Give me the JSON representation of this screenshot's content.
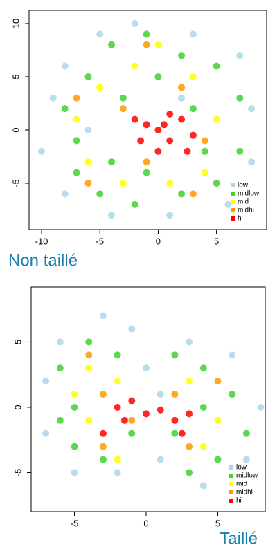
{
  "chart_data": [
    {
      "type": "scatter",
      "title": "Non taillé",
      "xlim": [
        -11.07,
        9.3
      ],
      "ylim": [
        -9.35,
        11.23
      ],
      "xticks": [
        -10,
        -5,
        0,
        5
      ],
      "yticks": [
        -5,
        0,
        5,
        10
      ],
      "legend": "bottom-right",
      "series": [
        {
          "name": "low",
          "color": "#add8e6",
          "x": [
            -9,
            -10,
            -8,
            -5,
            -2,
            3,
            7,
            8,
            8,
            6,
            1,
            -4,
            -8,
            -6,
            2
          ],
          "values": [
            3,
            -2,
            6,
            9,
            10,
            9,
            7,
            2,
            -3,
            -7,
            -8,
            -8,
            -6,
            0,
            3
          ]
        },
        {
          "name": "midlow",
          "color": "#3ed130",
          "x": [
            -8,
            -7,
            -6,
            -4,
            -1,
            2,
            5,
            7,
            7,
            5,
            2,
            -2,
            -5,
            -7,
            -3,
            0,
            3,
            -4,
            4,
            -1
          ],
          "values": [
            2,
            -4,
            5,
            8,
            9,
            7,
            6,
            3,
            -2,
            -5,
            -6,
            -7,
            -6,
            -1,
            3,
            5,
            2,
            -3,
            -2,
            -4
          ]
        },
        {
          "name": "mid",
          "color": "#ffff00",
          "x": [
            -5,
            -2,
            3,
            5,
            4,
            -3,
            -6,
            0,
            -7,
            1
          ],
          "values": [
            4,
            6,
            5,
            1,
            -4,
            -5,
            -3,
            8,
            1,
            -5
          ]
        },
        {
          "name": "midhi",
          "color": "#ff9900",
          "x": [
            -3,
            2,
            4,
            -1,
            -6,
            -1,
            3,
            -7
          ],
          "values": [
            2,
            4,
            -1,
            -3,
            -5,
            8,
            -6,
            3
          ]
        },
        {
          "name": "hi",
          "color": "#ff0000",
          "x": [
            0,
            1,
            -1,
            2,
            0,
            -2,
            3,
            1,
            -1.5,
            2.5,
            0.5
          ],
          "values": [
            0,
            -1,
            0.5,
            1,
            -2,
            1,
            -0.5,
            1.5,
            -1,
            -2,
            0.5
          ]
        }
      ]
    },
    {
      "type": "scatter",
      "title": "Taillé",
      "xlim": [
        -8.02,
        8.31
      ],
      "ylim": [
        -7.99,
        9.2
      ],
      "xticks": [
        -5,
        0,
        5
      ],
      "yticks": [
        -5,
        0,
        5
      ],
      "legend": "bottom-right",
      "series": [
        {
          "name": "low",
          "color": "#add8e6",
          "x": [
            -7,
            -6,
            -3,
            -1,
            3,
            6,
            8,
            7,
            4,
            1,
            -2,
            -5,
            -7,
            0,
            1
          ],
          "values": [
            2,
            5,
            7,
            6,
            5,
            4,
            0,
            -4,
            -6,
            -4,
            -5,
            -5,
            -2,
            3,
            1
          ]
        },
        {
          "name": "midlow",
          "color": "#3ed130",
          "x": [
            -6,
            -5,
            -4,
            -2,
            -1,
            -3,
            -5,
            2,
            4,
            6,
            7,
            5,
            3,
            2,
            -6,
            4
          ],
          "values": [
            3,
            0,
            5,
            4,
            -2,
            -4,
            -3,
            4,
            3,
            1,
            -2,
            -4,
            -5,
            -2,
            -1,
            0
          ]
        },
        {
          "name": "mid",
          "color": "#ffff00",
          "x": [
            -4,
            -2,
            -4,
            -2,
            3,
            5,
            4,
            -5
          ],
          "values": [
            3,
            2,
            -1,
            -4,
            2,
            -1,
            -3,
            1
          ]
        },
        {
          "name": "midhi",
          "color": "#ff9900",
          "x": [
            -3,
            -1,
            -3,
            2,
            3,
            5,
            -4
          ],
          "values": [
            1,
            -1,
            -3,
            1,
            -3,
            2,
            4
          ]
        },
        {
          "name": "hi",
          "color": "#ff0000",
          "x": [
            -1,
            -2,
            0,
            1,
            2,
            2.5,
            -3,
            -1.5,
            3
          ],
          "values": [
            0.5,
            0,
            -0.5,
            -0.2,
            -1,
            -2,
            -2,
            -1,
            -0.5
          ]
        }
      ]
    }
  ]
}
